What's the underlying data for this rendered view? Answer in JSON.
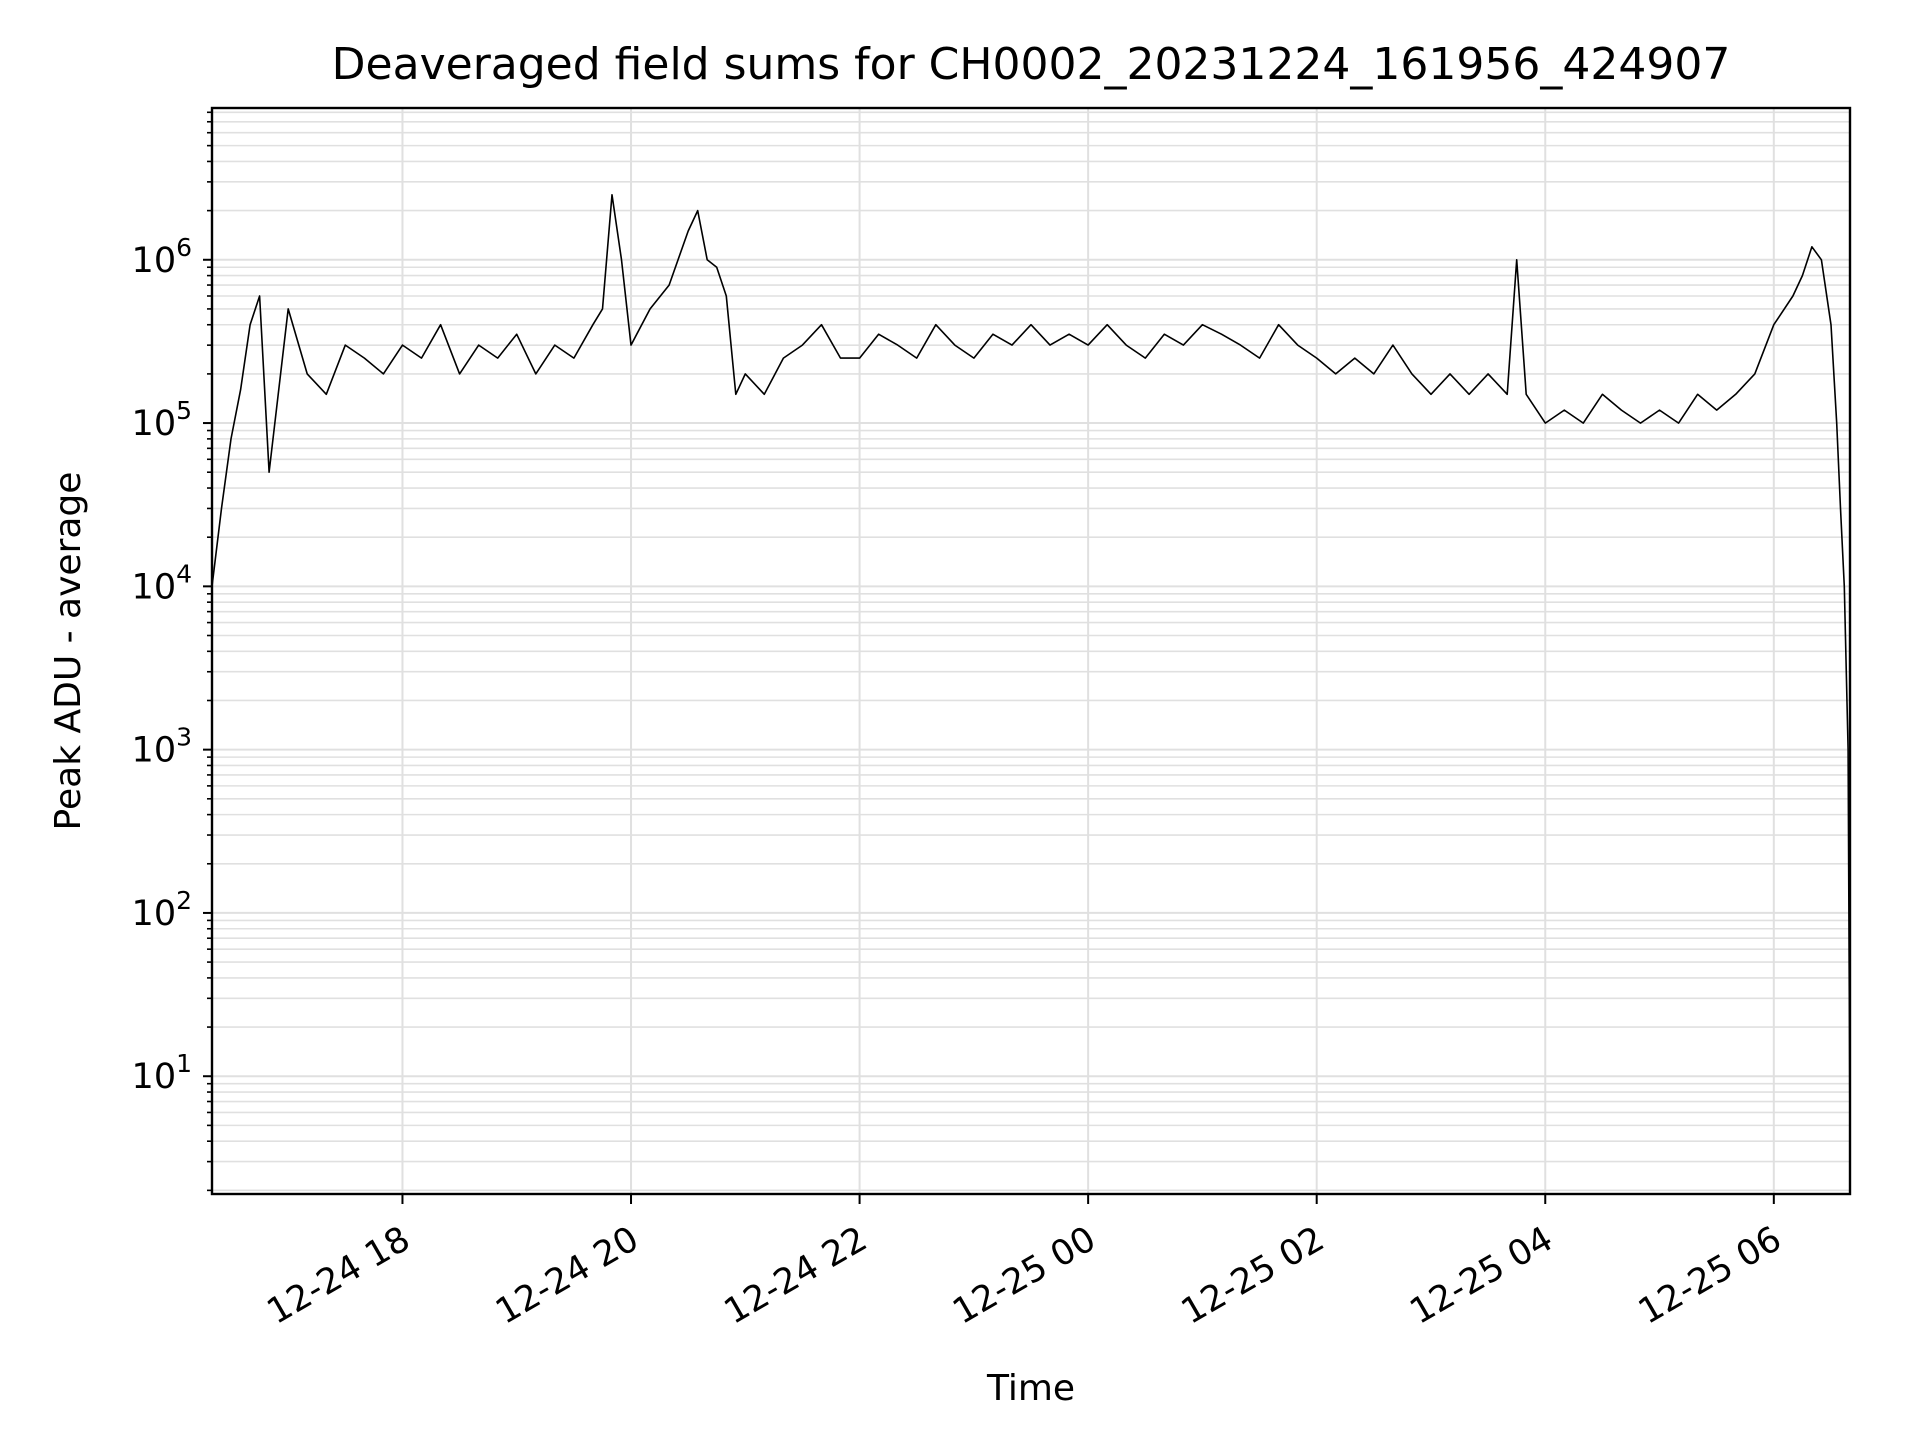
{
  "chart_data": {
    "type": "line",
    "title": "Deaveraged field sums for CH0002_20231224_161956_424907",
    "xlabel": "Time",
    "ylabel": "Peak ADU - average",
    "yscale": "log",
    "ylim": [
      1.9,
      8500000
    ],
    "xlim": [
      "2023-12-24 16:20",
      "2023-12-25 06:40"
    ],
    "x_ticks": [
      {
        "value": "2023-12-24 18:00",
        "label": "12-24 18"
      },
      {
        "value": "2023-12-24 20:00",
        "label": "12-24 20"
      },
      {
        "value": "2023-12-24 22:00",
        "label": "12-24 22"
      },
      {
        "value": "2023-12-25 00:00",
        "label": "12-25 00"
      },
      {
        "value": "2023-12-25 02:00",
        "label": "12-25 02"
      },
      {
        "value": "2023-12-25 04:00",
        "label": "12-25 04"
      },
      {
        "value": "2023-12-25 06:00",
        "label": "12-25 06"
      }
    ],
    "y_ticks": [
      {
        "value": 10,
        "base": "10",
        "exp": "1"
      },
      {
        "value": 100,
        "base": "10",
        "exp": "2"
      },
      {
        "value": 1000,
        "base": "10",
        "exp": "3"
      },
      {
        "value": 10000,
        "base": "10",
        "exp": "4"
      },
      {
        "value": 100000,
        "base": "10",
        "exp": "5"
      },
      {
        "value": 1000000,
        "base": "10",
        "exp": "6"
      }
    ],
    "grid": true,
    "line_color": "#000000",
    "grid_color": "#e0e0e0",
    "series": [
      {
        "x": [
          "2023-12-24 16:20",
          "2023-12-24 16:25",
          "2023-12-24 16:30",
          "2023-12-24 16:35",
          "2023-12-24 16:40",
          "2023-12-24 16:45",
          "2023-12-24 16:50",
          "2023-12-24 17:00",
          "2023-12-24 17:10",
          "2023-12-24 17:20",
          "2023-12-24 17:30",
          "2023-12-24 17:40",
          "2023-12-24 17:50",
          "2023-12-24 18:00",
          "2023-12-24 18:10",
          "2023-12-24 18:20",
          "2023-12-24 18:30",
          "2023-12-24 18:40",
          "2023-12-24 18:50",
          "2023-12-24 19:00",
          "2023-12-24 19:10",
          "2023-12-24 19:20",
          "2023-12-24 19:30",
          "2023-12-24 19:40",
          "2023-12-24 19:45",
          "2023-12-24 19:50",
          "2023-12-24 19:55",
          "2023-12-24 20:00",
          "2023-12-24 20:10",
          "2023-12-24 20:20",
          "2023-12-24 20:30",
          "2023-12-24 20:35",
          "2023-12-24 20:40",
          "2023-12-24 20:45",
          "2023-12-24 20:50",
          "2023-12-24 20:55",
          "2023-12-24 21:00",
          "2023-12-24 21:10",
          "2023-12-24 21:20",
          "2023-12-24 21:30",
          "2023-12-24 21:40",
          "2023-12-24 21:50",
          "2023-12-24 22:00",
          "2023-12-24 22:10",
          "2023-12-24 22:20",
          "2023-12-24 22:30",
          "2023-12-24 22:40",
          "2023-12-24 22:50",
          "2023-12-24 23:00",
          "2023-12-24 23:10",
          "2023-12-24 23:20",
          "2023-12-24 23:30",
          "2023-12-24 23:40",
          "2023-12-24 23:50",
          "2023-12-25 00:00",
          "2023-12-25 00:10",
          "2023-12-25 00:20",
          "2023-12-25 00:30",
          "2023-12-25 00:40",
          "2023-12-25 00:50",
          "2023-12-25 01:00",
          "2023-12-25 01:10",
          "2023-12-25 01:20",
          "2023-12-25 01:30",
          "2023-12-25 01:40",
          "2023-12-25 01:50",
          "2023-12-25 02:00",
          "2023-12-25 02:10",
          "2023-12-25 02:20",
          "2023-12-25 02:30",
          "2023-12-25 02:40",
          "2023-12-25 02:50",
          "2023-12-25 03:00",
          "2023-12-25 03:10",
          "2023-12-25 03:20",
          "2023-12-25 03:30",
          "2023-12-25 03:40",
          "2023-12-25 03:45",
          "2023-12-25 03:50",
          "2023-12-25 04:00",
          "2023-12-25 04:10",
          "2023-12-25 04:20",
          "2023-12-25 04:30",
          "2023-12-25 04:40",
          "2023-12-25 04:50",
          "2023-12-25 05:00",
          "2023-12-25 05:10",
          "2023-12-25 05:20",
          "2023-12-25 05:30",
          "2023-12-25 05:40",
          "2023-12-25 05:50",
          "2023-12-25 06:00",
          "2023-12-25 06:10",
          "2023-12-25 06:15",
          "2023-12-25 06:20",
          "2023-12-25 06:25",
          "2023-12-25 06:30",
          "2023-12-25 06:33",
          "2023-12-25 06:35",
          "2023-12-25 06:37",
          "2023-12-25 06:39",
          "2023-12-25 06:40"
        ],
        "y": [
          10000,
          30000,
          80000,
          160000,
          400000,
          600000,
          50000,
          500000,
          200000,
          150000,
          300000,
          250000,
          200000,
          300000,
          250000,
          400000,
          200000,
          300000,
          250000,
          350000,
          200000,
          300000,
          250000,
          400000,
          500000,
          2500000,
          1000000,
          300000,
          500000,
          700000,
          1500000,
          2000000,
          1000000,
          900000,
          600000,
          150000,
          200000,
          150000,
          250000,
          300000,
          400000,
          250000,
          250000,
          350000,
          300000,
          250000,
          400000,
          300000,
          250000,
          350000,
          300000,
          400000,
          300000,
          350000,
          300000,
          400000,
          300000,
          250000,
          350000,
          300000,
          400000,
          350000,
          300000,
          250000,
          400000,
          300000,
          250000,
          200000,
          250000,
          200000,
          300000,
          200000,
          150000,
          200000,
          150000,
          200000,
          150000,
          1000000,
          150000,
          100000,
          120000,
          100000,
          150000,
          120000,
          100000,
          120000,
          100000,
          150000,
          120000,
          150000,
          200000,
          400000,
          600000,
          800000,
          1200000,
          1000000,
          400000,
          100000,
          30000,
          10000,
          1000,
          4
        ]
      }
    ]
  }
}
